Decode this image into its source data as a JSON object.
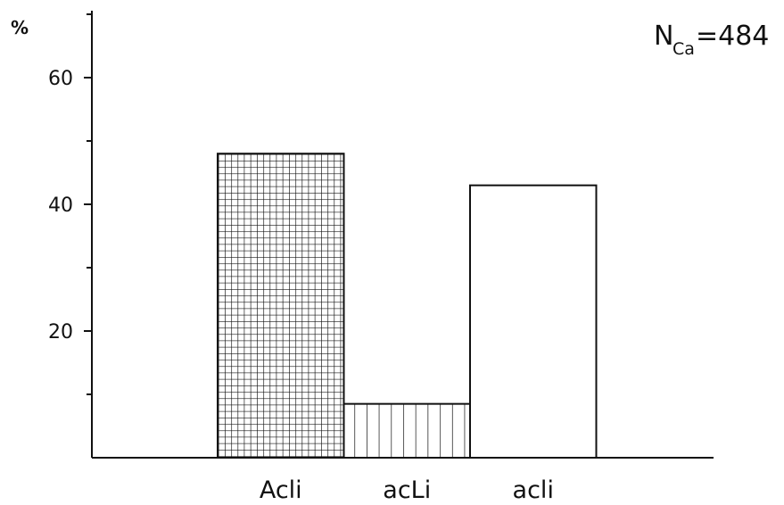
{
  "chart_data": {
    "type": "bar",
    "categories": [
      "Acli",
      "acLi",
      "acli"
    ],
    "values": [
      48,
      8.5,
      43
    ],
    "ylabel": "%",
    "ylim": [
      0,
      70
    ],
    "yticks": [
      20,
      40,
      60
    ],
    "fill_patterns": [
      "crosshatch",
      "vertical-lines",
      "none"
    ],
    "grid": false,
    "annotation": {
      "main": "N",
      "subscript": "Ca",
      "value": "=484"
    }
  }
}
